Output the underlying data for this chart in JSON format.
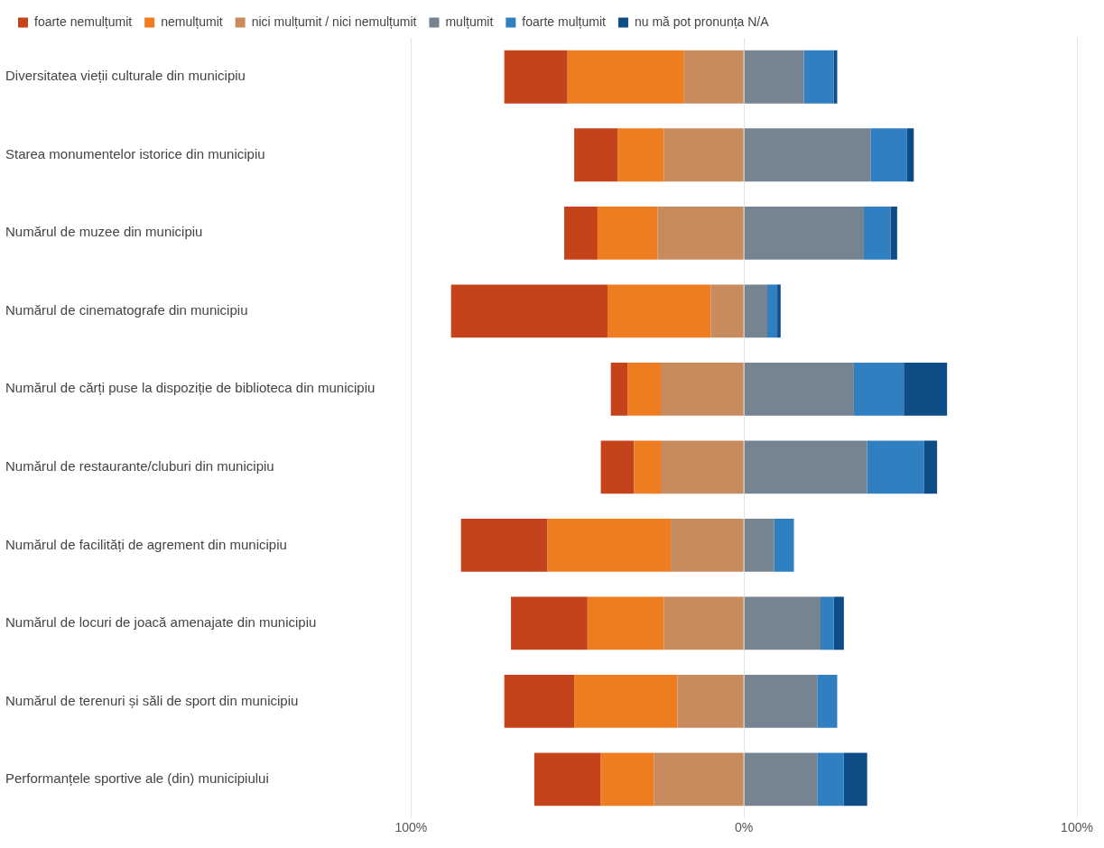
{
  "chart_data": {
    "type": "bar",
    "orientation": "horizontal",
    "stacked": true,
    "legend": "top left",
    "grid": "x",
    "categories": [
      "Diversitatea vieții culturale din municipiu",
      "Starea monumentelor istorice din municipiu",
      "Numărul de muzee din municipiu",
      "Numărul de cinematografe din municipiu",
      "Numărul de cărți puse la dispoziție de biblioteca din municipiu",
      "Numărul de restaurante/cluburi din municipiu",
      "Numărul de facilități de agrement din municipiu",
      "Numărul de locuri de joacă amenajate din municipiu",
      "Numărul de terenuri și săli de sport din municipiu",
      "Performanțele sportive ale (din) municipiului"
    ],
    "xlim": [
      -100,
      100
    ],
    "xticks": [
      {
        "value": -100,
        "label": "100%"
      },
      {
        "value": 0,
        "label": "0%"
      },
      {
        "value": 100,
        "label": "100%"
      }
    ],
    "series": [
      {
        "name": "nici mulțumit / nici nemulțumit",
        "color": "#c88b5e",
        "values": [
          -18,
          -24,
          -26,
          -10,
          -25,
          -25,
          -22,
          -24,
          -20,
          -27
        ]
      },
      {
        "name": "nemulțumit",
        "color": "#ee7d22",
        "values": [
          -35,
          -14,
          -18,
          -31,
          -10,
          -8,
          -37,
          -23,
          -31,
          -16
        ]
      },
      {
        "name": "foarte nemulțumit",
        "color": "#c5431a",
        "values": [
          -19,
          -13,
          -10,
          -47,
          -5,
          -10,
          -26,
          -23,
          -21,
          -20
        ]
      },
      {
        "name": "mulțumit",
        "color": "#768391",
        "values": [
          18,
          38,
          36,
          7,
          33,
          37,
          9,
          23,
          22,
          22
        ]
      },
      {
        "name": "foarte mulțumit",
        "color": "#2f7fc1",
        "values": [
          9,
          11,
          8,
          3,
          15,
          17,
          6,
          4,
          6,
          8
        ]
      },
      {
        "name": "nu mă pot pronunța N/A",
        "color": "#0d4c85",
        "values": [
          1,
          2,
          2,
          1,
          13,
          4,
          0,
          3,
          0,
          7
        ]
      }
    ]
  }
}
